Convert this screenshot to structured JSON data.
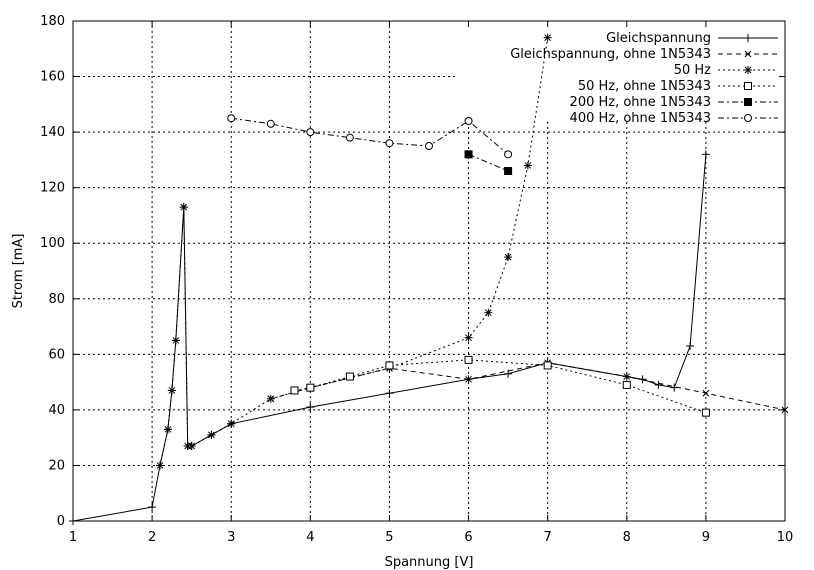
{
  "chart_data": {
    "type": "line",
    "title": "",
    "xlabel": "Spannung [V]",
    "ylabel": "Strom [mA]",
    "xlim": [
      1,
      10
    ],
    "ylim": [
      0,
      180
    ],
    "xticks": [
      1,
      2,
      3,
      4,
      5,
      6,
      7,
      8,
      9,
      10
    ],
    "yticks": [
      0,
      20,
      40,
      60,
      80,
      100,
      120,
      140,
      160,
      180
    ],
    "grid": true,
    "legend_position": "top-right",
    "series": [
      {
        "name": "Gleichspannung",
        "marker": "plus",
        "line": "solid",
        "points": [
          [
            1,
            0
          ],
          [
            2,
            5
          ],
          [
            2.1,
            20
          ],
          [
            2.2,
            33
          ],
          [
            2.25,
            47
          ],
          [
            2.3,
            65
          ],
          [
            2.4,
            113
          ],
          [
            2.45,
            27
          ],
          [
            2.5,
            27
          ],
          [
            2.75,
            31
          ],
          [
            3,
            35
          ],
          [
            4,
            41
          ],
          [
            5,
            46
          ],
          [
            6,
            51
          ],
          [
            6.5,
            53
          ],
          [
            7,
            57
          ],
          [
            8,
            52
          ],
          [
            8.2,
            51
          ],
          [
            8.4,
            49
          ],
          [
            8.6,
            48
          ],
          [
            8.8,
            63
          ],
          [
            9,
            132
          ]
        ]
      },
      {
        "name": "Gleichspannung, ohne 1N5343",
        "marker": "x",
        "line": "dashed",
        "points": [
          [
            3.5,
            44
          ],
          [
            4,
            48
          ],
          [
            5,
            55
          ],
          [
            6,
            51
          ],
          [
            7,
            57
          ],
          [
            8,
            52
          ],
          [
            9,
            46
          ],
          [
            10,
            40
          ]
        ]
      },
      {
        "name": "50 Hz",
        "marker": "star",
        "line": "dotted",
        "points": [
          [
            2.1,
            20
          ],
          [
            2.2,
            33
          ],
          [
            2.25,
            47
          ],
          [
            2.3,
            65
          ],
          [
            2.4,
            113
          ],
          [
            2.45,
            27
          ],
          [
            2.5,
            27
          ],
          [
            2.75,
            31
          ],
          [
            3,
            35
          ],
          [
            3.5,
            44
          ],
          [
            4,
            48
          ],
          [
            5,
            55
          ],
          [
            6,
            66
          ],
          [
            6.25,
            75
          ],
          [
            6.5,
            95
          ],
          [
            6.75,
            128
          ],
          [
            7,
            174
          ]
        ]
      },
      {
        "name": "50 Hz, ohne 1N5343",
        "marker": "square-open",
        "line": "dotted",
        "points": [
          [
            3.8,
            47
          ],
          [
            4,
            48
          ],
          [
            4.5,
            52
          ],
          [
            5,
            56
          ],
          [
            6,
            58
          ],
          [
            7,
            56
          ],
          [
            8,
            49
          ],
          [
            9,
            39
          ]
        ]
      },
      {
        "name": "200 Hz, ohne 1N5343",
        "marker": "square-filled",
        "line": "dashdot",
        "points": [
          [
            6,
            132
          ],
          [
            6.5,
            126
          ]
        ]
      },
      {
        "name": "400 Hz, ohne 1N5343",
        "marker": "circle-open",
        "line": "dashdot",
        "points": [
          [
            3,
            145
          ],
          [
            3.5,
            143
          ],
          [
            4,
            140
          ],
          [
            4.5,
            138
          ],
          [
            5,
            136
          ],
          [
            5.5,
            135
          ],
          [
            6,
            144
          ],
          [
            6.5,
            132
          ]
        ]
      }
    ]
  }
}
